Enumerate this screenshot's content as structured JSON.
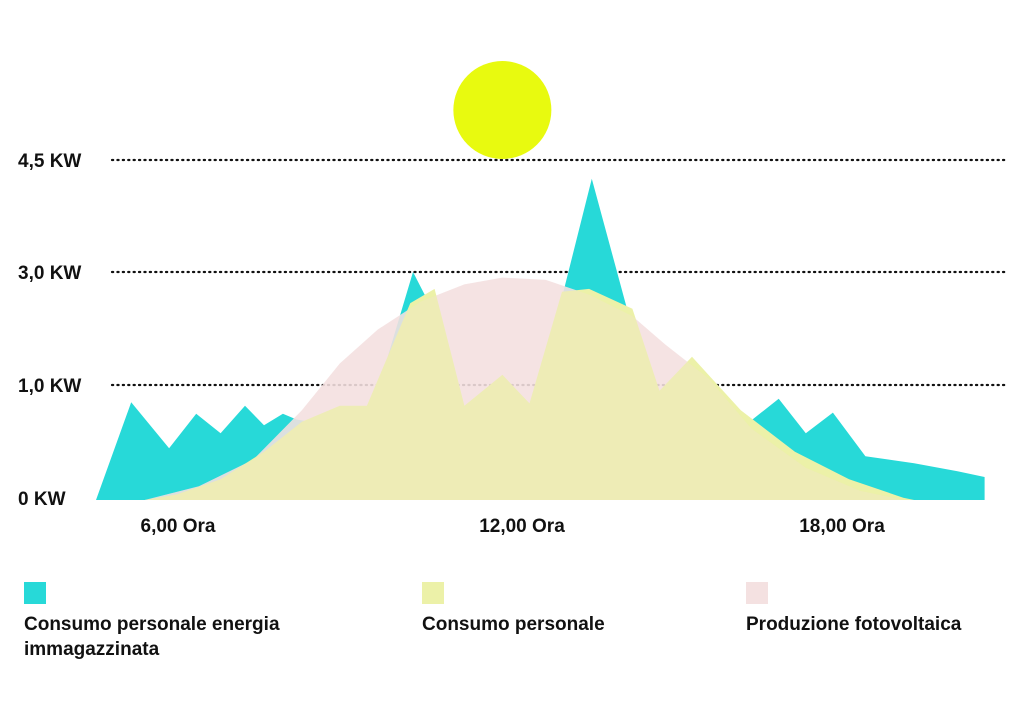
{
  "chart_data": {
    "type": "area",
    "title": "",
    "xlabel": "",
    "ylabel": "",
    "y_ticks": [
      {
        "value": 0,
        "label": "0 KW"
      },
      {
        "value": 1.0,
        "label": "1,0 KW"
      },
      {
        "value": 3.0,
        "label": "3,0 KW"
      },
      {
        "value": 4.5,
        "label": "4,5 KW"
      }
    ],
    "x_ticks": [
      {
        "value": 6,
        "label": "6,00  Ora"
      },
      {
        "value": 12,
        "label": "12,00  Ora"
      },
      {
        "value": 18,
        "label": "18,00  Ora"
      }
    ],
    "xlim": [
      4.5,
      21
    ],
    "grid": "dotted at labelled levels",
    "decoration": {
      "sun_color": "#e8fa0f",
      "sun_x": 12
    }
  },
  "series": [
    {
      "key": "storage",
      "color": "#27d9d8",
      "points": [
        [
          4.5,
          0
        ],
        [
          5.15,
          0.85
        ],
        [
          5.85,
          0.45
        ],
        [
          6.35,
          0.75
        ],
        [
          6.8,
          0.58
        ],
        [
          7.25,
          0.82
        ],
        [
          7.6,
          0.65
        ],
        [
          7.95,
          0.75
        ],
        [
          8.2,
          0.7
        ],
        [
          9.0,
          0.64
        ],
        [
          9.5,
          0.64
        ],
        [
          10.35,
          3.0
        ],
        [
          10.7,
          2.35
        ],
        [
          11.3,
          0.65
        ],
        [
          12.0,
          0.9
        ],
        [
          12.5,
          0.64
        ],
        [
          13.1,
          2.55
        ],
        [
          13.65,
          4.25
        ],
        [
          14.3,
          2.35
        ],
        [
          14.95,
          0.72
        ],
        [
          15.6,
          1.35
        ],
        [
          16.4,
          0.62
        ],
        [
          17.1,
          0.88
        ],
        [
          17.6,
          0.58
        ],
        [
          18.1,
          0.76
        ],
        [
          18.7,
          0.38
        ],
        [
          19.6,
          0.32
        ],
        [
          20.4,
          0.25
        ],
        [
          20.9,
          0.2
        ],
        [
          20.9,
          0
        ],
        [
          4.5,
          0
        ]
      ]
    },
    {
      "key": "personal",
      "color": "#ecf1a8",
      "points": [
        [
          5.4,
          0
        ],
        [
          6.0,
          0.05
        ],
        [
          6.8,
          0.18
        ],
        [
          7.6,
          0.42
        ],
        [
          8.3,
          0.68
        ],
        [
          9.0,
          0.82
        ],
        [
          9.5,
          0.82
        ],
        [
          10.3,
          2.45
        ],
        [
          10.75,
          2.7
        ],
        [
          11.3,
          0.82
        ],
        [
          12.0,
          1.18
        ],
        [
          12.5,
          0.84
        ],
        [
          13.1,
          2.65
        ],
        [
          13.6,
          2.7
        ],
        [
          14.4,
          2.35
        ],
        [
          14.9,
          0.95
        ],
        [
          15.5,
          1.5
        ],
        [
          16.4,
          0.78
        ],
        [
          17.4,
          0.42
        ],
        [
          18.4,
          0.18
        ],
        [
          19.4,
          0.02
        ],
        [
          19.6,
          0
        ],
        [
          5.4,
          0
        ]
      ]
    },
    {
      "key": "pv",
      "color": "#f4e1e1",
      "points": [
        [
          5.4,
          0
        ],
        [
          6.4,
          0.12
        ],
        [
          7.4,
          0.35
        ],
        [
          8.3,
          0.78
        ],
        [
          9.0,
          1.38
        ],
        [
          9.7,
          1.98
        ],
        [
          10.5,
          2.48
        ],
        [
          11.3,
          2.78
        ],
        [
          12.0,
          2.9
        ],
        [
          12.8,
          2.86
        ],
        [
          13.6,
          2.6
        ],
        [
          14.4,
          2.22
        ],
        [
          15.0,
          1.72
        ],
        [
          15.8,
          1.12
        ],
        [
          16.6,
          0.62
        ],
        [
          17.6,
          0.28
        ],
        [
          18.6,
          0.08
        ],
        [
          19.4,
          0
        ],
        [
          5.4,
          0
        ]
      ]
    }
  ],
  "legend": [
    {
      "label": "Consumo personale energia immagazzinata",
      "color": "#27d9d8"
    },
    {
      "label": "Consumo personale",
      "color": "#ecf1a8"
    },
    {
      "label": "Produzione fotovoltaica",
      "color": "#f4e1e1"
    }
  ]
}
